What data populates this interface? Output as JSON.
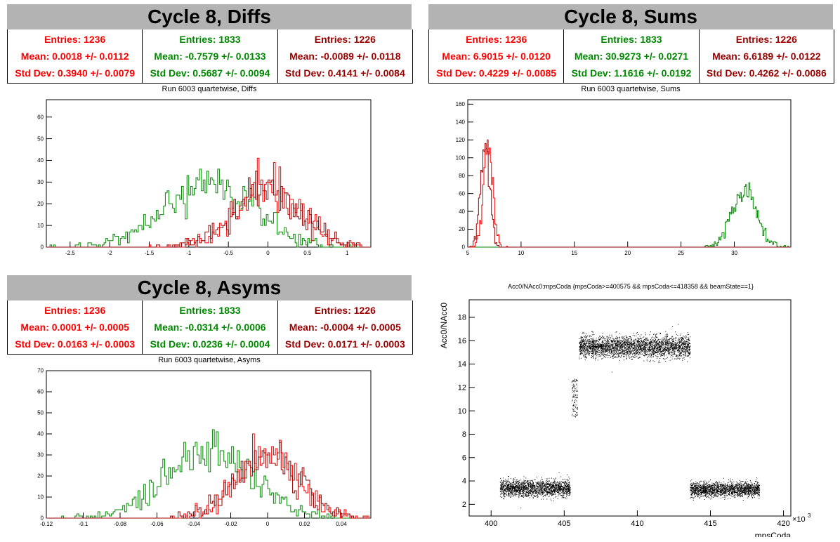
{
  "colors": {
    "red": "#ff0000",
    "green": "#008800",
    "darkred": "#990000",
    "title_bg": "#b3b3b3"
  },
  "panels": {
    "diffs": {
      "title": "Cycle 8, Diffs",
      "stats": [
        {
          "entries": "Entries: 1236",
          "mean": "Mean: 0.0018 +/- 0.0112",
          "std": "Std Dev: 0.3940 +/- 0.0079"
        },
        {
          "entries": "Entries: 1833",
          "mean": "Mean: -0.7579 +/- 0.0133",
          "std": "Std Dev: 0.5687 +/- 0.0094"
        },
        {
          "entries": "Entries: 1226",
          "mean": "Mean: -0.0089 +/- 0.0118",
          "std": "Std Dev: 0.4141 +/- 0.0084"
        }
      ],
      "hist_title": "Run 6003 quartetwise, Diffs"
    },
    "sums": {
      "title": "Cycle 8, Sums",
      "stats": [
        {
          "entries": "Entries: 1236",
          "mean": "Mean: 6.9015 +/- 0.0120",
          "std": "Std Dev: 0.4229 +/- 0.0085"
        },
        {
          "entries": "Entries: 1833",
          "mean": "Mean: 30.9273 +/- 0.0271",
          "std": "Std Dev: 1.1616 +/- 0.0192"
        },
        {
          "entries": "Entries: 1226",
          "mean": "Mean: 6.6189 +/- 0.0122",
          "std": "Std Dev: 0.4262 +/- 0.0086"
        }
      ],
      "hist_title": "Run 6003 quartetwise, Sums"
    },
    "asyms": {
      "title": "Cycle 8, Asyms",
      "stats": [
        {
          "entries": "Entries: 1236",
          "mean": "Mean: 0.0001 +/- 0.0005",
          "std": "Std Dev: 0.0163 +/- 0.0003"
        },
        {
          "entries": "Entries: 1833",
          "mean": "Mean: -0.0314 +/- 0.0006",
          "std": "Std Dev: 0.0236 +/- 0.0004"
        },
        {
          "entries": "Entries: 1226",
          "mean": "Mean: -0.0004 +/- 0.0005",
          "std": "Std Dev: 0.0171 +/- 0.0003"
        }
      ],
      "hist_title": "Run 6003 quartetwise, Asyms"
    },
    "scatter": {
      "title": "Acc0/NAcc0:mpsCoda {mpsCoda>=400575 && mpsCoda<=418358 && beamState==1}"
    }
  },
  "chart_data": [
    {
      "type": "histogram",
      "name": "diffs",
      "xlim": [
        -2.8,
        1.3
      ],
      "ylim": [
        0,
        68
      ],
      "xticks": [
        -2.5,
        -2,
        -1.5,
        -1,
        -0.5,
        0,
        0.5,
        1
      ],
      "xtick_labels": [
        "-2.5",
        "-2",
        "-1.5",
        "-1",
        "-0.5",
        "0",
        "0.5",
        "1"
      ],
      "yticks": [
        0,
        10,
        20,
        30,
        40,
        50,
        60
      ],
      "series": [
        {
          "color": "green",
          "mean": -0.7579,
          "std": 0.5687,
          "entries": 1833
        },
        {
          "color": "red",
          "mean": 0.0018,
          "std": 0.394,
          "entries": 1236
        },
        {
          "color": "darkred",
          "mean": -0.0089,
          "std": 0.4141,
          "entries": 1226
        }
      ]
    },
    {
      "type": "histogram",
      "name": "sums",
      "xlim": [
        5,
        35.3
      ],
      "ylim": [
        0,
        165
      ],
      "xticks": [
        5,
        10,
        15,
        20,
        25,
        30
      ],
      "xtick_labels": [
        "5",
        "10",
        "15",
        "20",
        "25",
        "30"
      ],
      "yticks": [
        0,
        20,
        40,
        60,
        80,
        100,
        120,
        140,
        160
      ],
      "series": [
        {
          "color": "green",
          "mean": 30.9273,
          "std": 1.1616,
          "entries": 1833
        },
        {
          "color": "red",
          "mean": 6.9015,
          "std": 0.4229,
          "entries": 1236
        },
        {
          "color": "darkred",
          "mean": 6.6189,
          "std": 0.4262,
          "entries": 1226
        }
      ]
    },
    {
      "type": "histogram",
      "name": "asyms",
      "xlim": [
        -0.12,
        0.056
      ],
      "ylim": [
        0,
        70
      ],
      "xticks": [
        -0.12,
        -0.1,
        -0.08,
        -0.06,
        -0.04,
        -0.02,
        0,
        0.02,
        0.04
      ],
      "xtick_labels": [
        "-0.12",
        "-0.1",
        "-0.08",
        "-0.06",
        "-0.04",
        "-0.02",
        "0",
        "0.02",
        "0.04"
      ],
      "yticks": [
        0,
        10,
        20,
        30,
        40,
        50,
        60,
        70
      ],
      "series": [
        {
          "color": "green",
          "mean": -0.0314,
          "std": 0.0236,
          "entries": 1833
        },
        {
          "color": "red",
          "mean": 0.0001,
          "std": 0.0163,
          "entries": 1236
        },
        {
          "color": "darkred",
          "mean": -0.0004,
          "std": 0.0171,
          "entries": 1226
        }
      ]
    },
    {
      "type": "scatter",
      "name": "acc0_vs_mpscoda",
      "xlabel": "mpsCoda",
      "ylabel": "Acc0/NAcc0",
      "x_multiplier": "×10",
      "x_multiplier_exp": "3",
      "xlim": [
        398.5,
        420.5
      ],
      "ylim": [
        1,
        19.5
      ],
      "xticks": [
        400,
        405,
        410,
        415,
        420
      ],
      "xtick_labels": [
        "400",
        "405",
        "410",
        "415",
        "420"
      ],
      "yticks": [
        2,
        4,
        6,
        8,
        10,
        12,
        14,
        16,
        18
      ],
      "ytick_labels": [
        "2",
        "4",
        "6",
        "8",
        "10",
        "12",
        "14",
        "16",
        "18"
      ],
      "segments": [
        {
          "x": [
            400.6,
            405.4
          ],
          "y": 3.4,
          "spread": 0.35
        },
        {
          "x": [
            405.5,
            405.9
          ],
          "y": 10.8,
          "spread": 0.8
        },
        {
          "x": [
            406.0,
            413.6
          ],
          "y": 15.5,
          "spread": 0.45
        },
        {
          "x": [
            413.6,
            418.35
          ],
          "y": 3.3,
          "spread": 0.3
        }
      ]
    }
  ]
}
